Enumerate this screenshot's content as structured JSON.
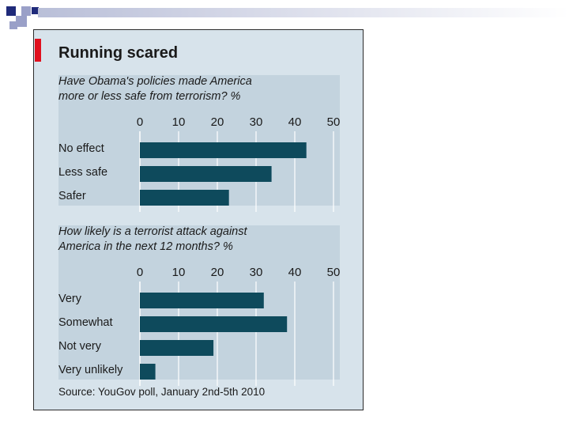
{
  "chart_data": [
    {
      "type": "bar",
      "orientation": "horizontal",
      "title": "Running scared",
      "question_lines": [
        "Have Obama's policies made America",
        "more or less safe from terrorism?  %"
      ],
      "categories": [
        "No effect",
        "Less safe",
        "Safer"
      ],
      "values": [
        43,
        34,
        23
      ],
      "xlim": [
        0,
        50
      ],
      "ticks": [
        0,
        10,
        20,
        30,
        40,
        50
      ],
      "grid": true,
      "colors": {
        "bar": "#0e4a5c",
        "gridline": "#ffffff",
        "panel": "#d7e3eb",
        "band": "#c3d3de"
      }
    },
    {
      "type": "bar",
      "orientation": "horizontal",
      "question_lines": [
        "How likely is a terrorist attack against",
        "America in the next 12 months?  %"
      ],
      "categories": [
        "Very",
        "Somewhat",
        "Not very",
        "Very unlikely"
      ],
      "values": [
        32,
        38,
        19,
        4
      ],
      "xlim": [
        0,
        50
      ],
      "ticks": [
        0,
        10,
        20,
        30,
        40,
        50
      ],
      "grid": true,
      "colors": {
        "bar": "#0e4a5c",
        "gridline": "#ffffff",
        "panel": "#d7e3eb",
        "band": "#c3d3de"
      }
    }
  ],
  "source": "Source: YouGov poll, January 2nd-5th 2010",
  "header_colors": {
    "navy": "#1f2a7a",
    "lavender": "#9aa0c8"
  }
}
